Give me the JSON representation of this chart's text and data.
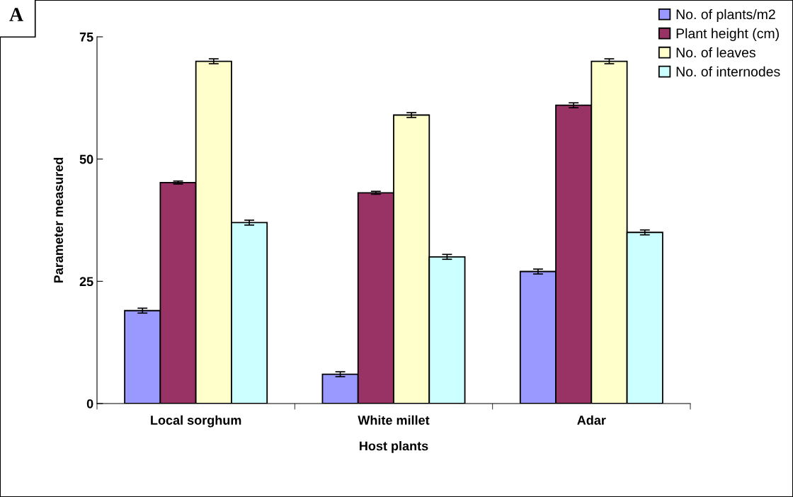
{
  "chart_data": {
    "type": "bar",
    "xlabel": "Host plants",
    "ylabel": "Parameter measured",
    "annotations": [
      "A"
    ],
    "categories": [
      "Local sorghum",
      "White millet",
      "Adar"
    ],
    "series": [
      {
        "name": "No. of plants/m2",
        "color": "#9999ff",
        "values": [
          19,
          6,
          27
        ],
        "errors": [
          0.5,
          0.5,
          0.5
        ]
      },
      {
        "name": "Plant height (cm)",
        "color": "#993366",
        "values": [
          45.2,
          43.1,
          61
        ],
        "errors": [
          0.3,
          0.3,
          0.5
        ]
      },
      {
        "name": "No. of leaves",
        "color": "#ffffcc",
        "values": [
          70,
          59,
          70
        ],
        "errors": [
          0.5,
          0.5,
          0.5
        ]
      },
      {
        "name": "No. of internodes",
        "color": "#ccffff",
        "values": [
          37,
          30,
          35
        ],
        "errors": [
          0.5,
          0.5,
          0.5
        ]
      }
    ],
    "ylim": [
      0,
      75
    ],
    "yticks": [
      0,
      25,
      50,
      75
    ],
    "grid": false,
    "legend": "top right"
  }
}
